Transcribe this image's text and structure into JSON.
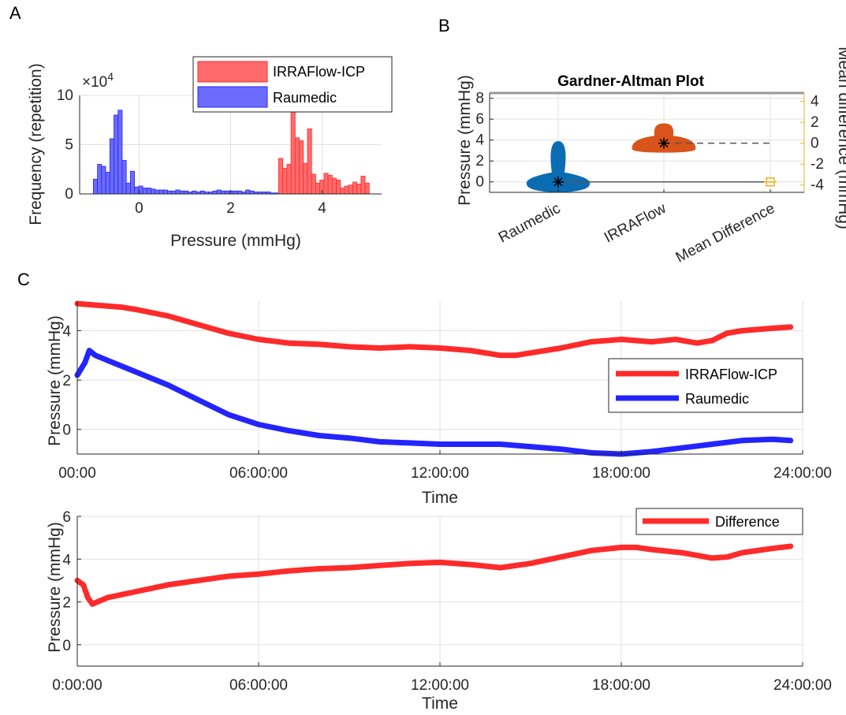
{
  "panels": {
    "a": "A",
    "b": "B",
    "c": "C"
  },
  "colors": {
    "irraflow": "#ff2a2a",
    "raumedic": "#2424ff",
    "irraflow_fill": "#ff6b6b",
    "raumedic_fill": "#6b6bff",
    "violin_blue": "#0a6cb3",
    "violin_orange": "#d9541a",
    "mean_diff": "#edb020",
    "grid": "#e0e0e0"
  },
  "chart_data": [
    {
      "id": "A",
      "type": "bar",
      "xlabel": "Pressure (mmHg)",
      "ylabel": "Frequency (repetition)",
      "exponent_label": "×10",
      "exponent_power": "4",
      "xlim": [
        -1.3,
        5.3
      ],
      "ylim": [
        0,
        10
      ],
      "xticks": [
        "0",
        "2",
        "4"
      ],
      "xtick_values": [
        0,
        2,
        4
      ],
      "yticks": [
        "0",
        "5",
        "10"
      ],
      "ytick_values": [
        0,
        5,
        10
      ],
      "bin_width": 0.09,
      "legend": [
        "IRRAFlow-ICP",
        "Raumedic"
      ],
      "series": [
        {
          "name": "Raumedic",
          "bin_starts": [
            -1.0,
            -0.91,
            -0.82,
            -0.73,
            -0.64,
            -0.55,
            -0.46,
            -0.37,
            -0.28,
            -0.19,
            -0.1,
            -0.01,
            0.08,
            0.17,
            0.26,
            0.35,
            0.44,
            0.53,
            0.62,
            0.71,
            0.8,
            0.89,
            0.98,
            1.07,
            1.16,
            1.25,
            1.34,
            1.43,
            1.52,
            1.61,
            1.7,
            1.79,
            1.88,
            1.97,
            2.06,
            2.15,
            2.24,
            2.33,
            2.42,
            2.51,
            2.6,
            2.69,
            2.78,
            2.87,
            2.96
          ],
          "values": [
            1.5,
            3.0,
            2.8,
            2.2,
            5.6,
            8.0,
            8.5,
            3.4,
            1.1,
            2.3,
            0.7,
            0.8,
            0.6,
            0.6,
            0.5,
            0.4,
            0.4,
            0.4,
            0.3,
            0.3,
            0.4,
            0.3,
            0.3,
            0.2,
            0.3,
            0.2,
            0.3,
            0.2,
            0.2,
            0.3,
            0.4,
            0.3,
            0.3,
            0.3,
            0.3,
            0.3,
            0.2,
            0.4,
            0.3,
            0.2,
            0.2,
            0.2,
            0.2,
            0.1,
            0.1
          ]
        },
        {
          "name": "IRRAFlow-ICP",
          "bin_starts": [
            3.05,
            3.14,
            3.23,
            3.32,
            3.41,
            3.5,
            3.59,
            3.68,
            3.77,
            3.86,
            3.95,
            4.04,
            4.13,
            4.22,
            4.31,
            4.4,
            4.49,
            4.58,
            4.67,
            4.76,
            4.85,
            4.94
          ],
          "values": [
            3.6,
            2.6,
            3.0,
            8.6,
            5.7,
            5.4,
            3.1,
            6.6,
            2.0,
            1.1,
            1.4,
            2.1,
            1.9,
            1.6,
            1.4,
            0.6,
            0.8,
            0.9,
            1.2,
            1.0,
            1.8,
            1.1
          ]
        }
      ]
    },
    {
      "id": "B",
      "type": "violin",
      "title": "Gardner-Altman Plot",
      "ylabel": "Pressure (mmHg)",
      "y2label": "Mean difference (mmHg)",
      "categories": [
        "Raumedic",
        "IRRAFlow",
        "Mean Difference"
      ],
      "ylim": [
        -1,
        8.5
      ],
      "yticks": [
        "0",
        "2",
        "4",
        "6",
        "8"
      ],
      "ytick_values": [
        0,
        2,
        4,
        6,
        8
      ],
      "y2ticks": [
        "4",
        "2",
        "0",
        "-2",
        "-4"
      ],
      "y2tick_values": [
        4,
        2,
        0,
        -2,
        -4
      ],
      "means": [
        0,
        3.7
      ],
      "mean_difference": -3.7
    },
    {
      "id": "C1",
      "type": "line",
      "xlabel": "Time",
      "ylabel": "Pressure (mmHg)",
      "xlim": [
        0,
        24
      ],
      "ylim": [
        -1,
        5.2
      ],
      "xticks": [
        "00:00",
        "06:00:00",
        "12:00:00",
        "18:00:00",
        "24:00:00"
      ],
      "xtick_values": [
        0,
        6,
        12,
        18,
        24
      ],
      "yticks": [
        "0",
        "2",
        "4"
      ],
      "ytick_values": [
        0,
        2,
        4
      ],
      "legend": [
        "IRRAFlow-ICP",
        "Raumedic"
      ],
      "series": [
        {
          "name": "IRRAFlow-ICP",
          "x": [
            0,
            0.5,
            1,
            1.5,
            2,
            3,
            4,
            5,
            6,
            7,
            8,
            9,
            10,
            11,
            12,
            13,
            14,
            14.5,
            15,
            16,
            17,
            18,
            19,
            19.8,
            20.5,
            21,
            21.5,
            22,
            23,
            23.6
          ],
          "y": [
            5.1,
            5.05,
            5.0,
            4.95,
            4.85,
            4.6,
            4.25,
            3.9,
            3.65,
            3.5,
            3.45,
            3.35,
            3.3,
            3.35,
            3.3,
            3.2,
            3.0,
            3.0,
            3.1,
            3.3,
            3.55,
            3.65,
            3.55,
            3.65,
            3.5,
            3.6,
            3.9,
            4.0,
            4.1,
            4.15
          ]
        },
        {
          "name": "Raumedic",
          "x": [
            0,
            0.25,
            0.4,
            0.6,
            1,
            2,
            3,
            4,
            5,
            6,
            7,
            8,
            9,
            10,
            11,
            12,
            13,
            14,
            15,
            16,
            17,
            18,
            19,
            20,
            21,
            22,
            23,
            23.6
          ],
          "y": [
            2.2,
            2.7,
            3.2,
            3.0,
            2.8,
            2.3,
            1.8,
            1.2,
            0.6,
            0.2,
            -0.05,
            -0.25,
            -0.35,
            -0.5,
            -0.55,
            -0.6,
            -0.6,
            -0.6,
            -0.7,
            -0.8,
            -0.95,
            -1.0,
            -0.9,
            -0.75,
            -0.6,
            -0.45,
            -0.4,
            -0.45
          ]
        }
      ]
    },
    {
      "id": "C2",
      "type": "line",
      "xlabel": "Time",
      "ylabel": "Pressure (mmHg)",
      "xlim": [
        0,
        24
      ],
      "ylim": [
        -1,
        6
      ],
      "xticks": [
        "0:00:00",
        "06:00:00",
        "12:00:00",
        "18:00:00",
        "24:00:00"
      ],
      "xtick_values": [
        0,
        6,
        12,
        18,
        24
      ],
      "yticks": [
        "0",
        "2",
        "4",
        "6"
      ],
      "ytick_values": [
        0,
        2,
        4,
        6
      ],
      "legend": [
        "Difference"
      ],
      "series": [
        {
          "name": "Difference",
          "x": [
            0,
            0.2,
            0.35,
            0.5,
            1,
            2,
            3,
            4,
            5,
            6,
            7,
            8,
            9,
            10,
            11,
            12,
            13,
            14,
            15,
            16,
            17,
            18,
            18.5,
            19,
            20,
            21,
            21.5,
            22,
            23,
            23.6
          ],
          "y": [
            3.0,
            2.8,
            2.2,
            1.9,
            2.2,
            2.5,
            2.8,
            3.0,
            3.2,
            3.3,
            3.45,
            3.55,
            3.6,
            3.7,
            3.8,
            3.85,
            3.75,
            3.6,
            3.8,
            4.1,
            4.4,
            4.55,
            4.55,
            4.45,
            4.3,
            4.05,
            4.1,
            4.3,
            4.5,
            4.6
          ]
        }
      ]
    }
  ]
}
